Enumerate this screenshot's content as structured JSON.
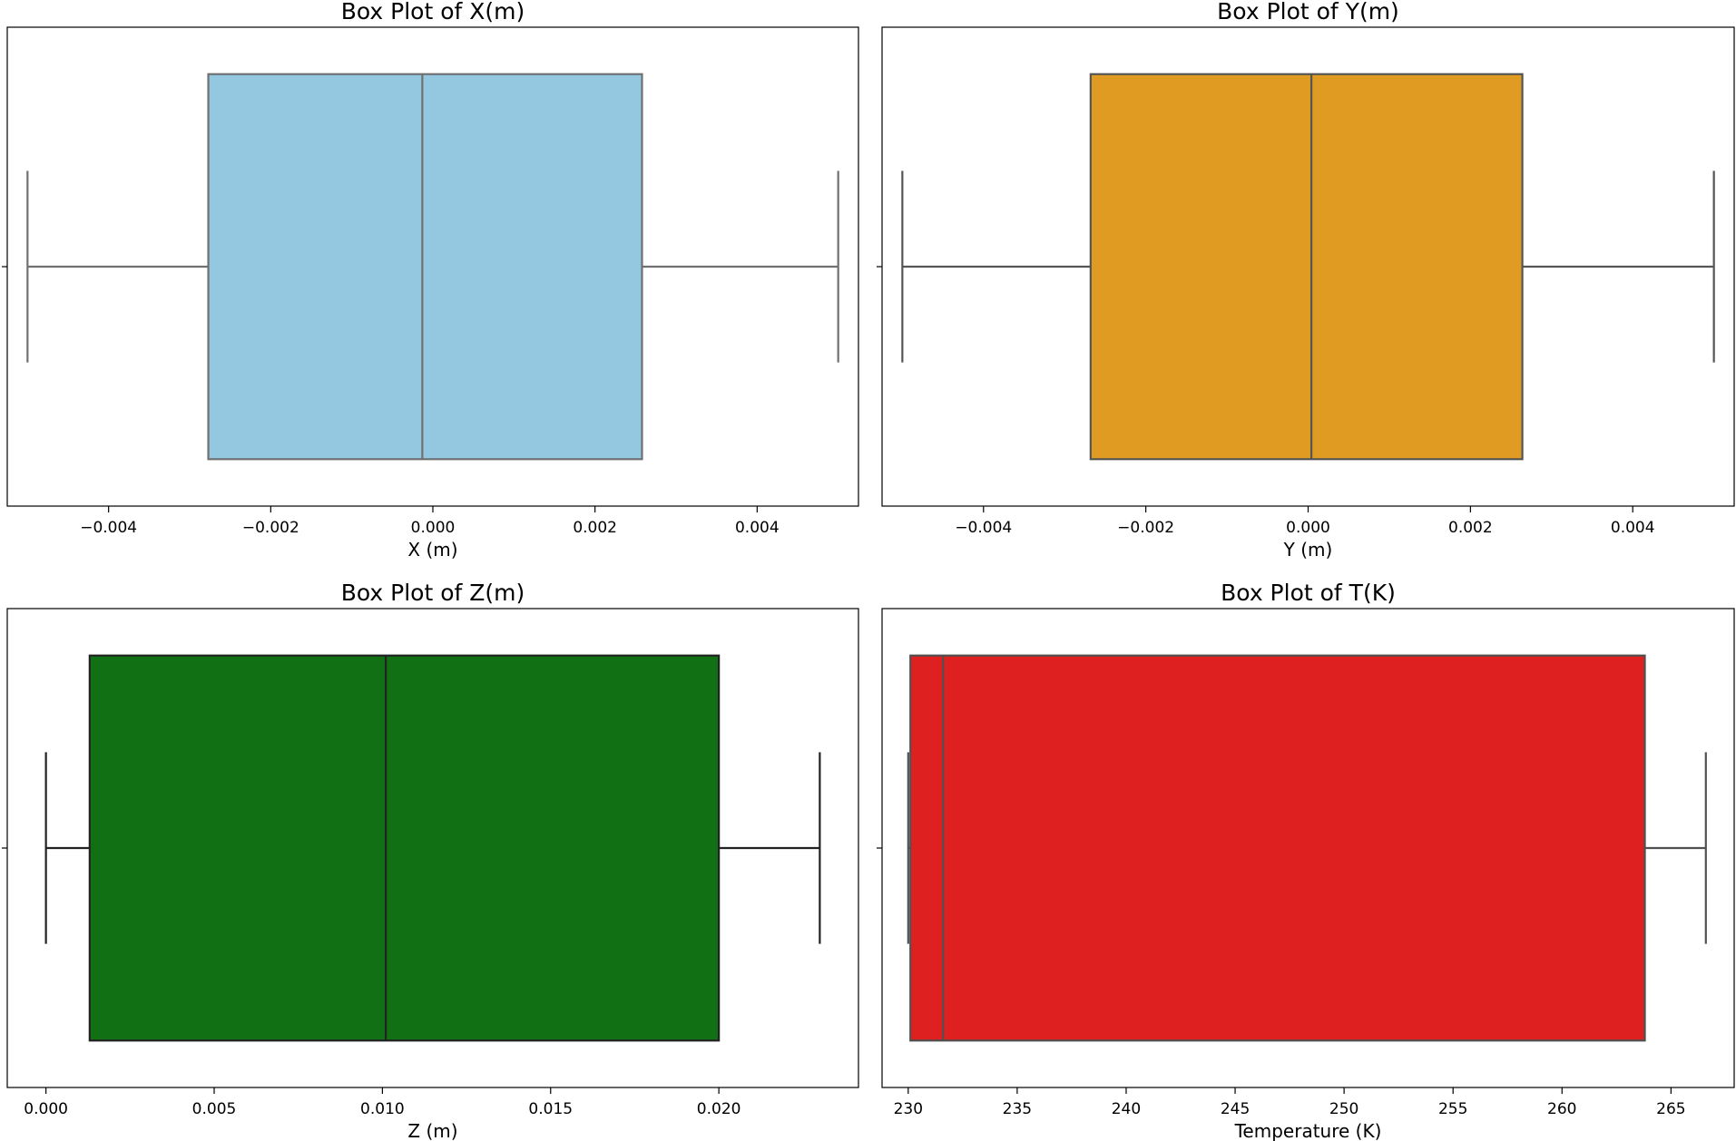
{
  "chart_data": [
    {
      "type": "box",
      "title": "Box Plot of X(m)",
      "xlabel": "X (m)",
      "xlim": [
        -0.00525,
        0.00525
      ],
      "xticks": [
        -0.004,
        -0.002,
        0.0,
        0.002,
        0.004
      ],
      "xtick_labels": [
        "−0.004",
        "−0.002",
        "0.000",
        "0.002",
        "0.004"
      ],
      "box": {
        "whisker_low": -0.005,
        "q1": -0.00277,
        "median": -0.00013,
        "q3": 0.00258,
        "whisker_high": 0.005
      },
      "fill_color": "#93c8e0",
      "line_color": "#707070"
    },
    {
      "type": "box",
      "title": "Box Plot of Y(m)",
      "xlabel": "Y (m)",
      "xlim": [
        -0.00525,
        0.00525
      ],
      "xticks": [
        -0.004,
        -0.002,
        0.0,
        0.002,
        0.004
      ],
      "xtick_labels": [
        "−0.004",
        "−0.002",
        "0.000",
        "0.002",
        "0.004"
      ],
      "box": {
        "whisker_low": -0.005,
        "q1": -0.00268,
        "median": 4e-05,
        "q3": 0.00264,
        "whisker_high": 0.005
      },
      "fill_color": "#df9b22",
      "line_color": "#555555"
    },
    {
      "type": "box",
      "title": "Box Plot of Z(m)",
      "xlabel": "Z (m)",
      "xlim": [
        -0.00115,
        0.02415
      ],
      "xticks": [
        0.0,
        0.005,
        0.01,
        0.015,
        0.02
      ],
      "xtick_labels": [
        "0.000",
        "0.005",
        "0.010",
        "0.015",
        "0.020"
      ],
      "box": {
        "whisker_low": 0.0,
        "q1": 0.0013,
        "median": 0.0101,
        "q3": 0.02,
        "whisker_high": 0.023
      },
      "fill_color": "#116f14",
      "line_color": "#222222"
    },
    {
      "type": "box",
      "title": "Box Plot of T(K)",
      "xlabel": "Temperature (K)",
      "xlim": [
        228.8,
        267.9
      ],
      "xticks": [
        230,
        235,
        240,
        245,
        250,
        255,
        260,
        265
      ],
      "xtick_labels": [
        "230",
        "235",
        "240",
        "245",
        "250",
        "255",
        "260",
        "265"
      ],
      "box": {
        "whisker_low": 230.0,
        "q1": 230.1,
        "median": 231.6,
        "q3": 263.8,
        "whisker_high": 266.6
      },
      "fill_color": "#df2020",
      "line_color": "#505050"
    }
  ]
}
